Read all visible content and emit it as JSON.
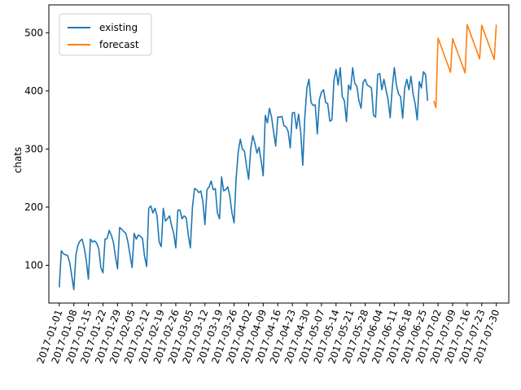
{
  "chart_data": {
    "type": "line",
    "title": "",
    "xlabel": "",
    "ylabel": "chats",
    "ylim": [
      35,
      548
    ],
    "xlim": [
      "2016-12-27",
      "2017-08-05"
    ],
    "grid": false,
    "legend": {
      "placement": "top-left",
      "entries": [
        "existing",
        "forecast"
      ]
    },
    "y_ticks": [
      100,
      200,
      300,
      400,
      500
    ],
    "x_ticks": [
      "2017-01-01",
      "2017-01-08",
      "2017-01-15",
      "2017-01-22",
      "2017-01-29",
      "2017-02-05",
      "2017-02-12",
      "2017-02-19",
      "2017-02-26",
      "2017-03-05",
      "2017-03-12",
      "2017-03-19",
      "2017-03-26",
      "2017-04-02",
      "2017-04-09",
      "2017-04-16",
      "2017-04-23",
      "2017-04-30",
      "2017-05-07",
      "2017-05-14",
      "2017-05-21",
      "2017-05-28",
      "2017-06-04",
      "2017-06-11",
      "2017-06-18",
      "2017-06-25",
      "2017-07-02",
      "2017-07-09",
      "2017-07-16",
      "2017-07-23",
      "2017-07-30"
    ],
    "series": [
      {
        "name": "existing",
        "color": "#1f77b4",
        "start": "2017-01-01",
        "step_days": 1,
        "values": [
          62,
          125,
          120,
          118,
          117,
          105,
          82,
          58,
          118,
          135,
          142,
          145,
          130,
          108,
          76,
          145,
          140,
          142,
          138,
          128,
          96,
          87,
          145,
          146,
          160,
          152,
          140,
          115,
          94,
          165,
          162,
          158,
          155,
          140,
          118,
          96,
          155,
          145,
          152,
          150,
          146,
          115,
          98,
          198,
          202,
          190,
          198,
          185,
          140,
          132,
          198,
          176,
          180,
          185,
          168,
          155,
          130,
          195,
          195,
          180,
          185,
          182,
          152,
          130,
          200,
          232,
          230,
          225,
          228,
          210,
          170,
          230,
          235,
          245,
          230,
          232,
          190,
          180,
          252,
          228,
          230,
          235,
          218,
          190,
          173,
          250,
          295,
          317,
          300,
          296,
          270,
          248,
          300,
          323,
          310,
          293,
          303,
          280,
          254,
          358,
          345,
          370,
          355,
          330,
          305,
          355,
          355,
          356,
          340,
          338,
          330,
          302,
          362,
          363,
          335,
          360,
          330,
          272,
          355,
          405,
          420,
          380,
          375,
          376,
          326,
          385,
          398,
          402,
          380,
          378,
          348,
          350,
          418,
          437,
          410,
          440,
          390,
          383,
          347,
          410,
          402,
          440,
          413,
          408,
          383,
          370,
          415,
          420,
          410,
          408,
          405,
          358,
          355,
          428,
          430,
          402,
          420,
          402,
          385,
          354,
          405,
          440,
          410,
          395,
          390,
          353,
          405,
          420,
          402,
          425,
          395,
          378,
          350,
          416,
          405,
          433,
          428,
          383
        ]
      },
      {
        "name": "forecast",
        "color": "#ff7f0e",
        "x": [
          "2017-06-30",
          "2017-07-01",
          "2017-07-02",
          "2017-07-08",
          "2017-07-09",
          "2017-07-15",
          "2017-07-16",
          "2017-07-22",
          "2017-07-23",
          "2017-07-29",
          "2017-07-30"
        ],
        "values": [
          383,
          371,
          491,
          432,
          490,
          431,
          514,
          455,
          513,
          454,
          514
        ]
      }
    ]
  }
}
